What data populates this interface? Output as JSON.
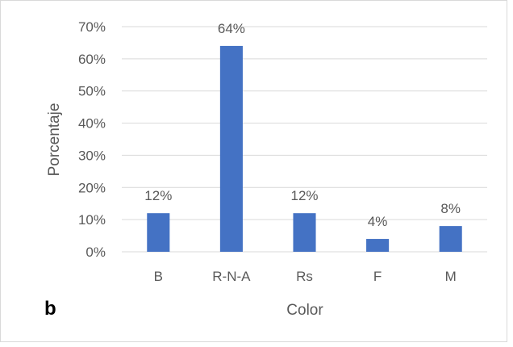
{
  "panel_label": "b",
  "chart_data": {
    "type": "bar",
    "categories": [
      "B",
      "R-N-A",
      "Rs",
      "F",
      "M"
    ],
    "values": [
      12,
      64,
      12,
      4,
      8
    ],
    "data_labels": [
      "12%",
      "64%",
      "12%",
      "4%",
      "8%"
    ],
    "xlabel": "Color",
    "ylabel": "Porcentaje",
    "ylim": [
      0,
      70
    ],
    "yticks": [
      0,
      10,
      20,
      30,
      40,
      50,
      60,
      70
    ],
    "ytick_labels": [
      "0%",
      "10%",
      "20%",
      "30%",
      "40%",
      "50%",
      "60%",
      "70%"
    ],
    "grid": true,
    "bar_color": "#4472C4",
    "grid_color": "#d9d9d9",
    "text_color": "#595959"
  }
}
